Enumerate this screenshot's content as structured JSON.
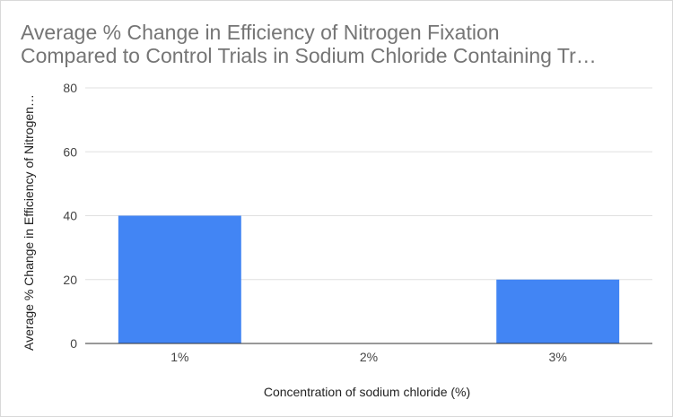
{
  "chart_data": {
    "type": "bar",
    "title": "Average % Change in Efficiency of Nitrogen Fixation Compared to Control Trials in Sodium Chloride Containing Tr…",
    "title_lines": [
      "Average % Change in Efficiency of Nitrogen Fixation",
      "Compared to Control Trials in Sodium Chloride Containing Tr…"
    ],
    "xlabel": "Concentration of sodium chloride (%)",
    "ylabel": "Average % Change in Efficiency of Nitrogen…",
    "categories": [
      "1%",
      "2%",
      "3%"
    ],
    "values": [
      40,
      0,
      20
    ],
    "ylim": [
      0,
      80
    ],
    "yticks": [
      0,
      20,
      40,
      60,
      80
    ],
    "grid": true,
    "legend": "none",
    "bar_color": "#4285f4",
    "gridline_color": "#e0e0e0",
    "baseline_color": "#333333"
  }
}
